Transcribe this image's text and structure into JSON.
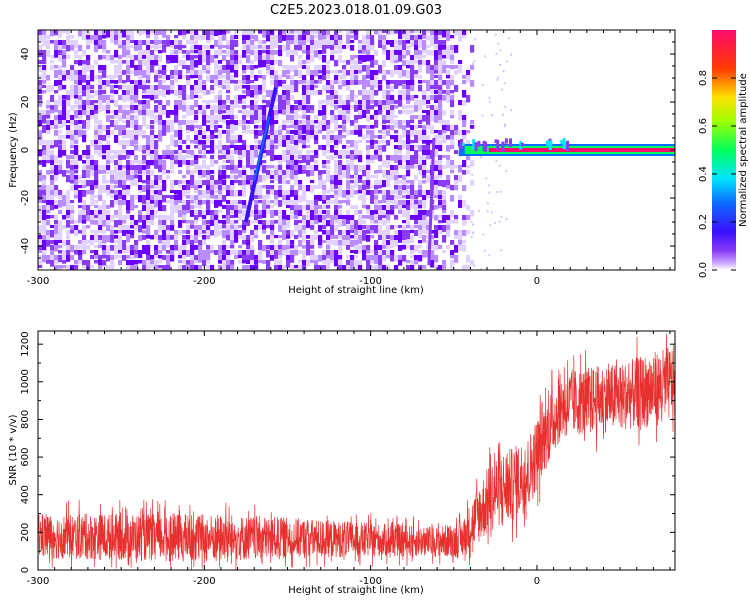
{
  "title": "C2E5.2023.018.01.09.G03",
  "chart_data": [
    {
      "type": "heatmap",
      "title": "C2E5.2023.018.01.09.G03",
      "xlabel": "Height of straight line (km)",
      "ylabel": "Frequency (Hz)",
      "xlim": [
        -300,
        83
      ],
      "ylim": [
        -50,
        50
      ],
      "x_ticks": [
        -300,
        -200,
        -100,
        0
      ],
      "y_ticks": [
        -40,
        -20,
        0,
        20,
        40
      ],
      "colorbar": {
        "label": "Normalized spectral amplitude",
        "range": [
          0,
          1
        ],
        "ticks": [
          "0.0",
          "0.2",
          "0.4",
          "0.6",
          "0.8"
        ],
        "colormap": "rainbow (purple-blue-cyan-green-yellow-red-magenta)"
      },
      "grid": false,
      "features": [
        {
          "name": "noise",
          "x_range": [
            -300,
            -40
          ],
          "y_range": [
            -50,
            50
          ],
          "amplitude": 0.05
        },
        {
          "name": "tone",
          "x_range": [
            -47,
            83
          ],
          "frequency": 0,
          "amplitude": 0.9
        },
        {
          "name": "slanted streak",
          "x": [
            -175,
            -157
          ],
          "frequency": [
            -30,
            26
          ],
          "amplitude": 0.35
        },
        {
          "name": "vertical streak",
          "x": [
            -65,
            -62
          ],
          "frequency": [
            -48,
            5
          ],
          "amplitude": 0.12
        }
      ]
    },
    {
      "type": "line",
      "xlabel": "Height of straight line (km)",
      "ylabel": "SNR (10 * v/v)",
      "xlim": [
        -300,
        83
      ],
      "ylim": [
        0,
        1270
      ],
      "x_ticks": [
        -300,
        -200,
        -100,
        0
      ],
      "y_ticks": [
        0,
        200,
        400,
        600,
        800,
        1000,
        1200
      ],
      "grid": false,
      "series": [
        {
          "color": "#e8302f",
          "x": [
            -300,
            -250,
            -200,
            -150,
            -100,
            -60,
            -45,
            -35,
            -25,
            -15,
            -5,
            5,
            15,
            30,
            50,
            70,
            83
          ],
          "mean": [
            180,
            175,
            170,
            170,
            160,
            150,
            160,
            300,
            420,
            450,
            520,
            720,
            880,
            900,
            920,
            960,
            1000
          ],
          "spread": [
            120,
            125,
            130,
            110,
            90,
            80,
            100,
            160,
            200,
            200,
            200,
            190,
            180,
            180,
            180,
            200,
            200
          ]
        }
      ]
    }
  ]
}
